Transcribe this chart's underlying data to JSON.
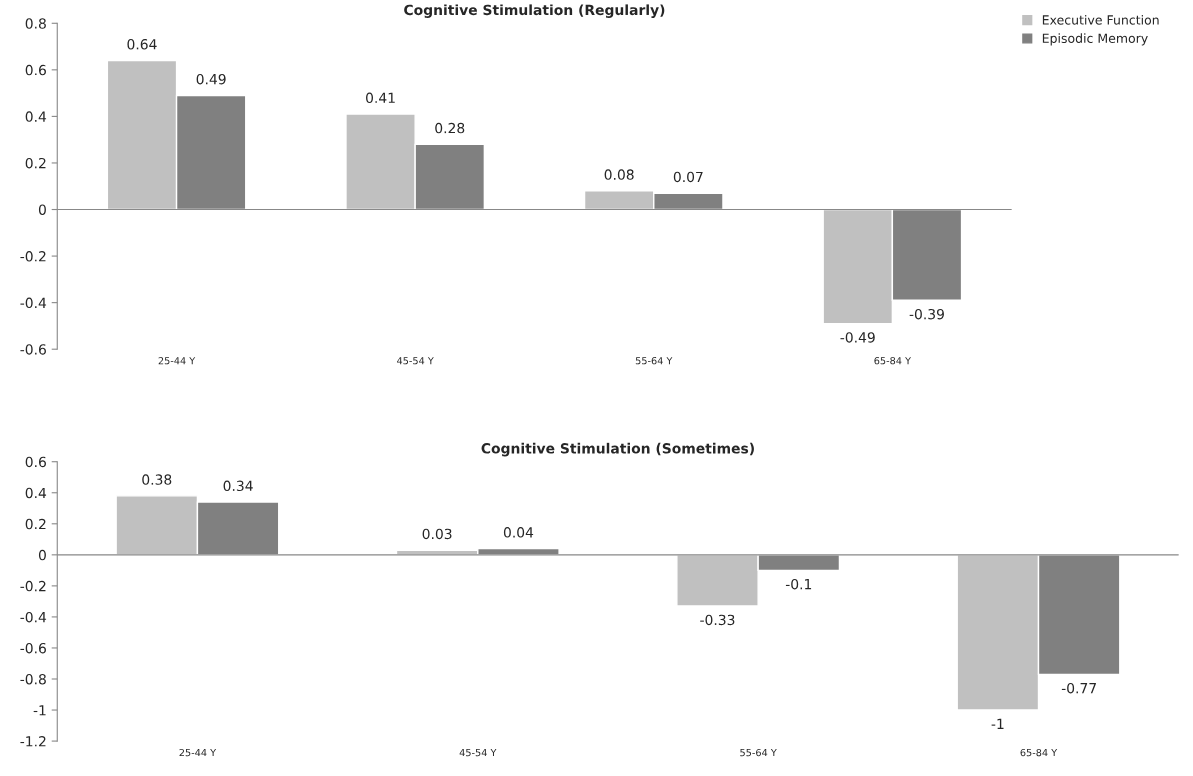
{
  "chart_data": [
    {
      "type": "bar",
      "title": "Cognitive Stimulation (Regularly)",
      "categories": [
        "25-44 Y",
        "45-54 Y",
        "55-64 Y",
        "65-84 Y"
      ],
      "series": [
        {
          "name": "Executive Function",
          "color": "#c0c0c0",
          "values": [
            0.64,
            0.41,
            0.08,
            -0.49
          ]
        },
        {
          "name": "Episodic Memory",
          "color": "#808080",
          "values": [
            0.49,
            0.28,
            0.07,
            -0.39
          ]
        }
      ],
      "ylim": [
        -0.6,
        0.8
      ],
      "yticks": [
        -0.6,
        -0.4,
        -0.2,
        0,
        0.2,
        0.4,
        0.6,
        0.8
      ],
      "data_labels": true,
      "grid": false,
      "legend": "top right",
      "ref_lines": [
        {
          "axis": "y",
          "value": 0,
          "color": "#888888"
        }
      ]
    },
    {
      "type": "bar",
      "title": "Cognitive Stimulation (Sometimes)",
      "categories": [
        "25-44 Y",
        "45-54 Y",
        "55-64 Y",
        "65-84 Y"
      ],
      "series": [
        {
          "color": "#c0c0c0",
          "values": [
            0.38,
            0.03,
            -0.33,
            -1
          ]
        },
        {
          "color": "#808080",
          "values": [
            0.34,
            0.04,
            -0.1,
            -0.77
          ]
        }
      ],
      "ylim": [
        -1.2,
        0.6
      ],
      "yticks": [
        -1.2,
        -1,
        -0.8,
        -0.6,
        -0.4,
        -0.2,
        0,
        0.2,
        0.4,
        0.6
      ],
      "data_labels": true,
      "grid": false,
      "ref_lines": [
        {
          "axis": "y",
          "value": 0,
          "color": "#888888"
        }
      ]
    }
  ]
}
